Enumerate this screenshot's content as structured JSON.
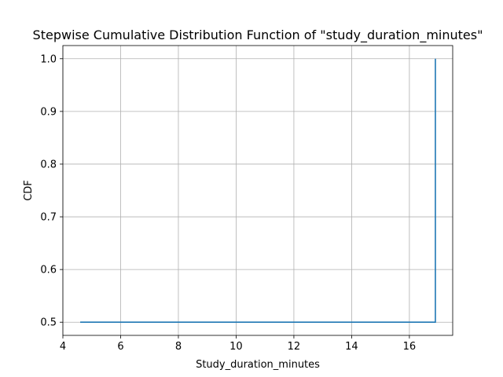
{
  "chart_data": {
    "type": "line",
    "title": "Stepwise Cumulative Distribution Function of \"study_duration_minutes\"",
    "xlabel": "Study_duration_minutes",
    "ylabel": "CDF",
    "xlim": [
      4.0,
      17.5
    ],
    "ylim": [
      0.475,
      1.025
    ],
    "xticks": [
      4,
      6,
      8,
      10,
      12,
      14,
      16
    ],
    "yticks": [
      0.5,
      0.6,
      0.7,
      0.8,
      0.9,
      1.0
    ],
    "xtick_labels": [
      "4",
      "6",
      "8",
      "10",
      "12",
      "14",
      "16"
    ],
    "ytick_labels": [
      "0.5",
      "0.6",
      "0.7",
      "0.8",
      "0.9",
      "1.0"
    ],
    "grid": true,
    "step": "post",
    "series": [
      {
        "color": "#1f77b4",
        "points": [
          {
            "x": 4.6,
            "y": 0.5
          },
          {
            "x": 16.9,
            "y": 0.5
          },
          {
            "x": 16.9,
            "y": 1.0
          }
        ]
      }
    ]
  }
}
